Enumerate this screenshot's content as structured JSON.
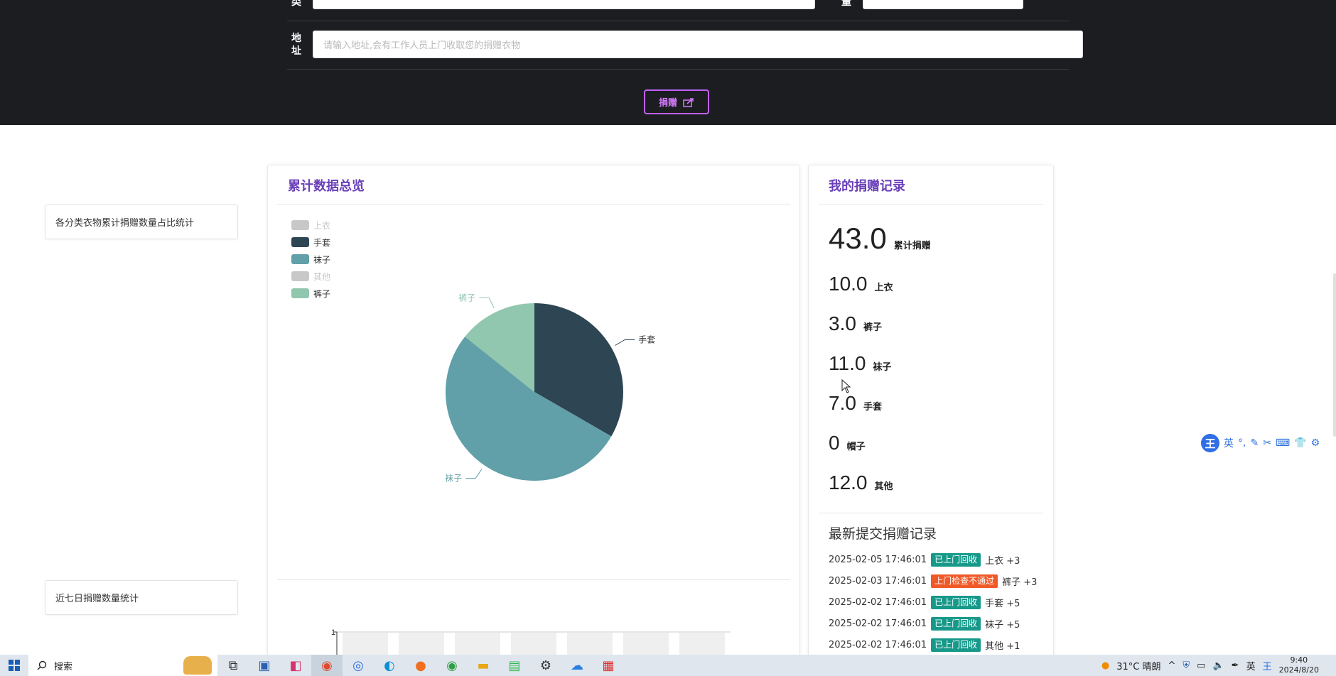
{
  "form": {
    "category_label": "类",
    "quantity_label": "量",
    "address_label_1": "地",
    "address_label_2": "址",
    "address_placeholder": "请输入地址,会有工作人员上门收取您的捐赠衣物",
    "donate_button": "捐赠"
  },
  "sidebar": {
    "item1": "各分类衣物累计捐赠数量占比统计",
    "item2": "近七日捐赠数量统计"
  },
  "overview": {
    "title": "累计数据总览",
    "legend": [
      {
        "name": "上衣",
        "color": "#c8c8c8",
        "enabled": false
      },
      {
        "name": "手套",
        "color": "#2e4553",
        "enabled": true
      },
      {
        "name": "袜子",
        "color": "#61a0a8",
        "enabled": true
      },
      {
        "name": "其他",
        "color": "#c8c8c8",
        "enabled": false
      },
      {
        "name": "裤子",
        "color": "#91c7ae",
        "enabled": true
      }
    ],
    "bar_axis_label": "1"
  },
  "chart_data": {
    "type": "pie",
    "slices": [
      {
        "name": "手套",
        "value": 7,
        "color": "#2e4553"
      },
      {
        "name": "袜子",
        "value": 11,
        "color": "#61a0a8"
      },
      {
        "name": "裤子",
        "value": 3,
        "color": "#91c7ae"
      }
    ]
  },
  "records": {
    "title": "我的捐赠记录",
    "total_value": "43.0",
    "total_label": "累计捐赠",
    "stats": [
      {
        "value": "10.0",
        "label": "上衣"
      },
      {
        "value": "3.0",
        "label": "裤子"
      },
      {
        "value": "11.0",
        "label": "袜子"
      },
      {
        "value": "7.0",
        "label": "手套"
      },
      {
        "value": "0",
        "label": "帽子"
      },
      {
        "value": "12.0",
        "label": "其他"
      }
    ],
    "latest_title": "最新提交捐赠记录",
    "latest": [
      {
        "time": "2025-02-05 17:46:01",
        "status": "已上门回收",
        "status_color": "#17998a",
        "item": "上衣 +3"
      },
      {
        "time": "2025-02-03 17:46:01",
        "status": "上门检查不通过",
        "status_color": "#f05a28",
        "item": "裤子 +3"
      },
      {
        "time": "2025-02-02 17:46:01",
        "status": "已上门回收",
        "status_color": "#17998a",
        "item": "手套 +5"
      },
      {
        "time": "2025-02-02 17:46:01",
        "status": "已上门回收",
        "status_color": "#17998a",
        "item": "袜子 +5"
      },
      {
        "time": "2025-02-02 17:46:01",
        "status": "已上门回收",
        "status_color": "#17998a",
        "item": "其他 +1"
      }
    ]
  },
  "ime": {
    "lang": "英"
  },
  "taskbar": {
    "search": "搜索",
    "weather": "31°C 晴朗",
    "ime_lang": "英",
    "time": "9:40",
    "date": "2024/8/20"
  }
}
